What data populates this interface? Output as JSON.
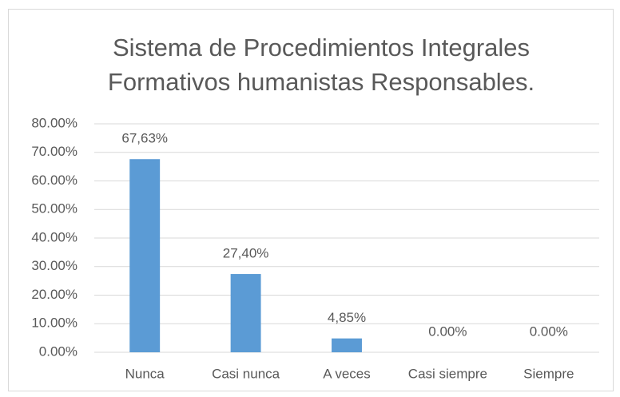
{
  "chart_data": {
    "type": "bar",
    "title": [
      "Sistema de Procedimientos Integrales",
      "Formativos humanistas Responsables."
    ],
    "categories": [
      "Nunca",
      "Casi nunca",
      "A veces",
      "Casi siempre",
      "Siempre"
    ],
    "values": [
      67.63,
      27.4,
      4.85,
      0,
      0
    ],
    "value_labels": [
      "67,63%",
      "27,40%",
      "4,85%",
      "0.00%",
      "0.00%"
    ],
    "color": "#5b9bd5",
    "ylim": [
      0,
      80
    ],
    "yticks": [
      {
        "value": 0,
        "label": "0.00%"
      },
      {
        "value": 10,
        "label": "10.00%"
      },
      {
        "value": 20,
        "label": "20.00%"
      },
      {
        "value": 30,
        "label": "30.00%"
      },
      {
        "value": 40,
        "label": "40.00%"
      },
      {
        "value": 50,
        "label": "50.00%"
      },
      {
        "value": 60,
        "label": "60.00%"
      },
      {
        "value": 70,
        "label": "70.00%"
      },
      {
        "value": 80,
        "label": "80.00%"
      }
    ],
    "grid": true
  }
}
